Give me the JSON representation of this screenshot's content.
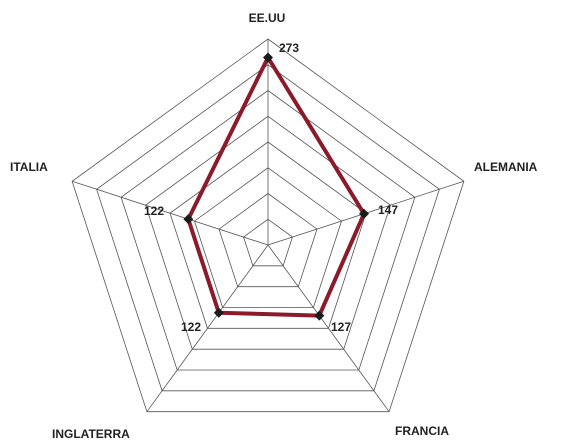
{
  "chart_data": {
    "type": "radar",
    "categories": [
      "EE.UU",
      "ALEMANIA",
      "FRANCIA",
      "INGLATERRA",
      "ITALIA"
    ],
    "series": [
      {
        "values": [
          273,
          147,
          127,
          122,
          122
        ]
      }
    ],
    "rmax": 300,
    "grid_rings": 8,
    "grid": true,
    "legend": "none",
    "colors": {
      "line": "#8b1a2b",
      "marker": "#1a1a1a",
      "grid": "#555555"
    }
  }
}
